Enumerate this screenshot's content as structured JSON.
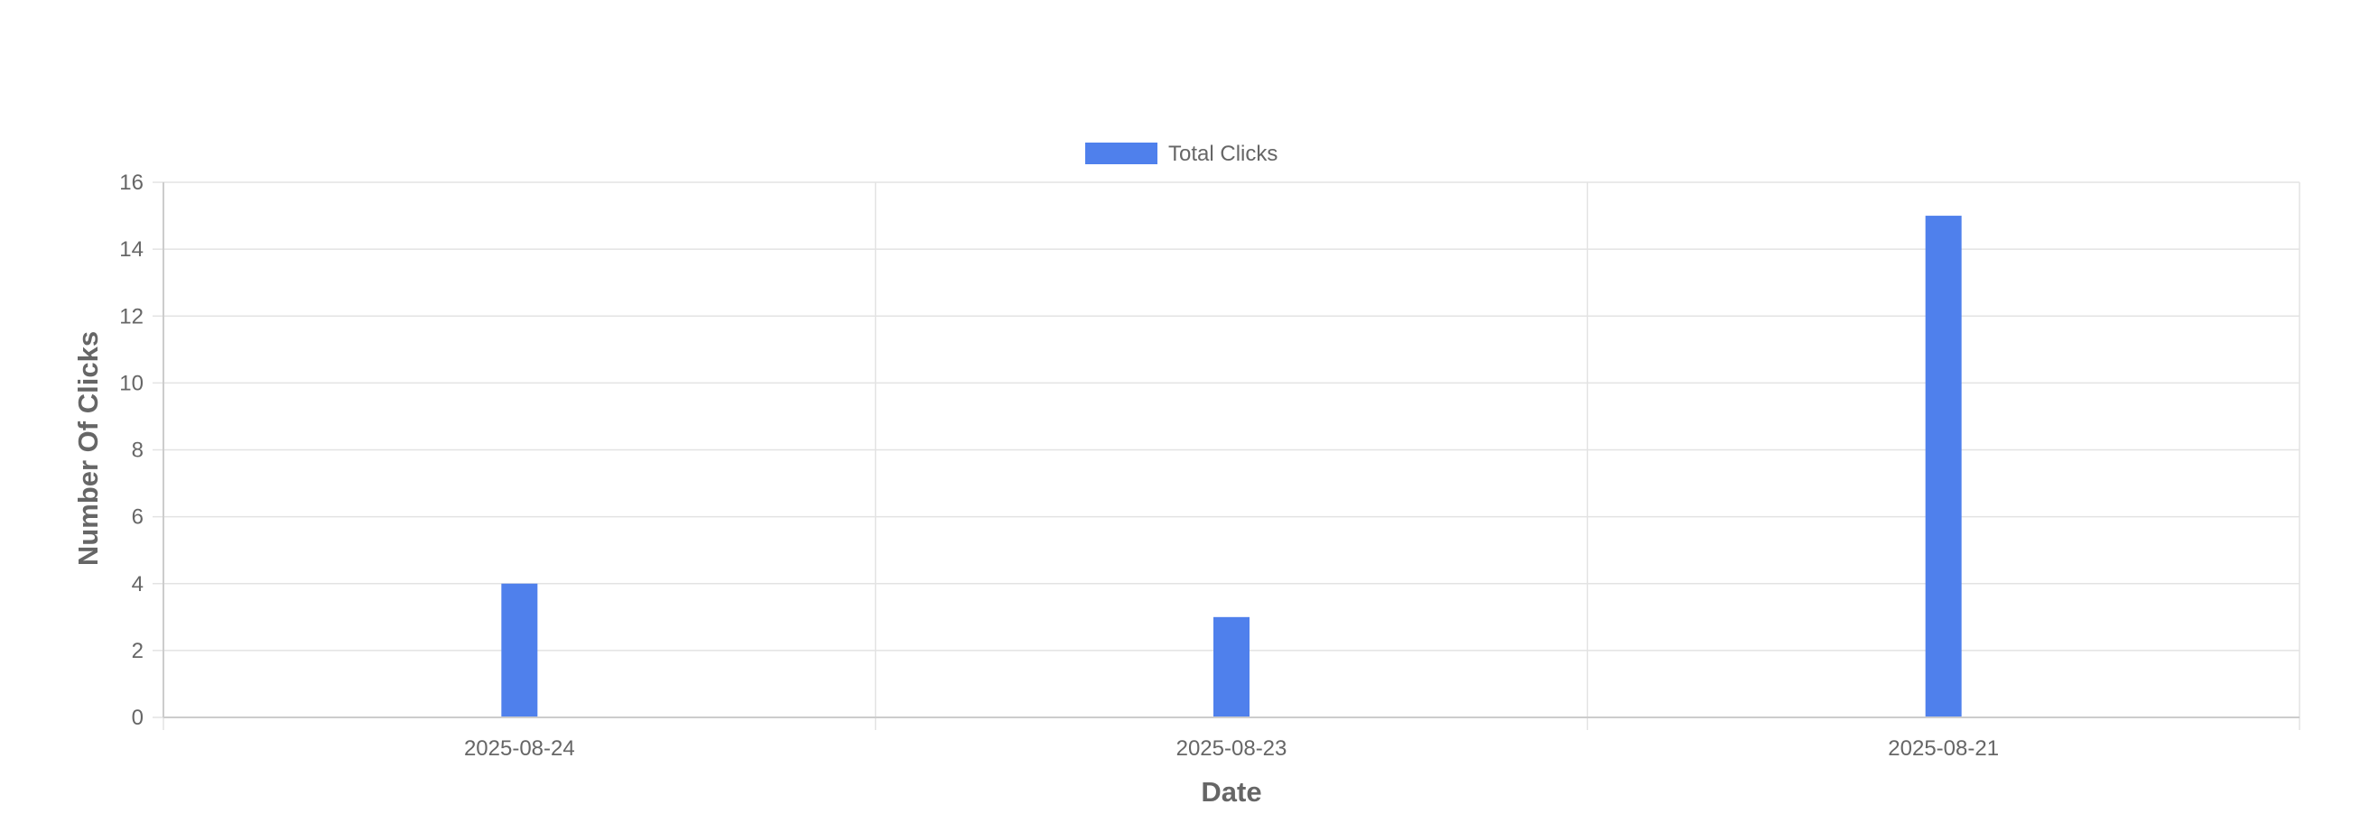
{
  "chart_data": {
    "type": "bar",
    "categories": [
      "2025-08-24",
      "2025-08-23",
      "2025-08-21"
    ],
    "series": [
      {
        "name": "Total Clicks",
        "values": [
          4,
          3,
          15
        ],
        "color": "#4f80ec"
      }
    ],
    "xlabel": "Date",
    "ylabel": "Number Of Clicks",
    "ylim": [
      0,
      16
    ],
    "yticks": [
      0,
      2,
      4,
      6,
      8,
      10,
      12,
      14,
      16
    ],
    "grid": true,
    "legend_position": "top-center",
    "colors": {
      "grid": "#e3e3e3",
      "axis": "#cccccc",
      "text": "#666666"
    }
  }
}
